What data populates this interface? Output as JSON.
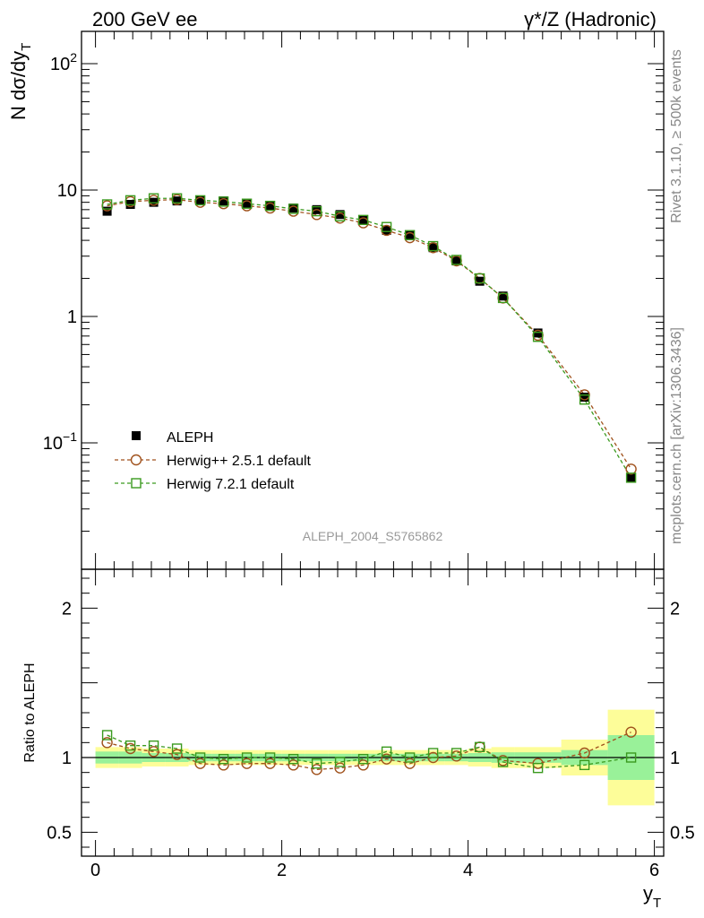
{
  "header": {
    "left_title": "200 GeV ee",
    "right_title": "γ*/Z (Hadronic)",
    "side_label_top": "Rivet 3.1.10, ≥ 500k events",
    "side_label_bottom": "mcplots.cern.ch [arXiv:1306.3436]",
    "watermark": "ALEPH_2004_S5765862"
  },
  "legend": {
    "items": [
      "ALEPH",
      "Herwig++ 2.5.1 default",
      "Herwig 7.2.1 default"
    ]
  },
  "colors": {
    "data": "#000000",
    "herwigpp": "#a0521d",
    "herwig7": "#3a9a1e",
    "band_inner": "#99f199",
    "band_outer": "#fdfd99"
  },
  "chart_data": [
    {
      "type": "scatter",
      "panel": "main",
      "yscale": "log",
      "ylabel": "N dσ/dy_T",
      "ylim": [
        0.01,
        180
      ],
      "xlim": [
        -0.15,
        6.1
      ],
      "yticks": [
        {
          "v": 0.1,
          "label": "10^−1"
        },
        {
          "v": 1,
          "label": "1"
        },
        {
          "v": 10,
          "label": "10"
        },
        {
          "v": 100,
          "label": "10^2"
        }
      ],
      "x": [
        0.125,
        0.375,
        0.625,
        0.875,
        1.125,
        1.375,
        1.625,
        1.875,
        2.125,
        2.375,
        2.625,
        2.875,
        3.125,
        3.375,
        3.625,
        3.875,
        4.125,
        4.375,
        4.75,
        5.25,
        5.75
      ],
      "series": [
        {
          "name": "ALEPH",
          "marker": "square-filled",
          "values": [
            6.8,
            7.7,
            8.0,
            8.2,
            8.3,
            8.2,
            7.8,
            7.5,
            7.2,
            7.0,
            6.4,
            5.8,
            4.8,
            4.4,
            3.5,
            2.75,
            1.9,
            1.45,
            0.74,
            0.23,
            0.053
          ]
        },
        {
          "name": "Herwig++ 2.5.1 default",
          "marker": "circle-open",
          "values": [
            7.5,
            8.1,
            8.3,
            8.4,
            8.0,
            7.8,
            7.5,
            7.2,
            6.8,
            6.4,
            6.0,
            5.5,
            4.8,
            4.2,
            3.5,
            2.75,
            2.0,
            1.4,
            0.71,
            0.24,
            0.062
          ]
        },
        {
          "name": "Herwig 7.2.1 default",
          "marker": "square-open",
          "values": [
            7.7,
            8.3,
            8.6,
            8.6,
            8.3,
            8.1,
            7.8,
            7.5,
            7.1,
            6.8,
            6.2,
            5.8,
            5.1,
            4.4,
            3.6,
            2.8,
            2.0,
            1.4,
            0.69,
            0.22,
            0.053
          ]
        }
      ]
    },
    {
      "type": "scatter",
      "panel": "ratio",
      "ylabel": "Ratio to ALEPH",
      "xlabel": "y_T",
      "ylim": [
        0.34,
        2.26
      ],
      "xlim": [
        -0.15,
        6.1
      ],
      "yticks": [
        {
          "v": 0.5,
          "label": "0.5"
        },
        {
          "v": 1,
          "label": "1"
        },
        {
          "v": 2,
          "label": "2"
        }
      ],
      "xticks": [
        {
          "v": 0,
          "label": "0"
        },
        {
          "v": 2,
          "label": "2"
        },
        {
          "v": 4,
          "label": "4"
        },
        {
          "v": 6,
          "label": "6"
        }
      ],
      "x": [
        0.125,
        0.375,
        0.625,
        0.875,
        1.125,
        1.375,
        1.625,
        1.875,
        2.125,
        2.375,
        2.625,
        2.875,
        3.125,
        3.375,
        3.625,
        3.875,
        4.125,
        4.375,
        4.75,
        5.25,
        5.75
      ],
      "bins": [
        [
          0,
          0.25
        ],
        [
          0.25,
          0.5
        ],
        [
          0.5,
          0.75
        ],
        [
          0.75,
          1.0
        ],
        [
          1.0,
          1.25
        ],
        [
          1.25,
          1.5
        ],
        [
          1.5,
          1.75
        ],
        [
          1.75,
          2.0
        ],
        [
          2.0,
          2.25
        ],
        [
          2.25,
          2.5
        ],
        [
          2.5,
          2.75
        ],
        [
          2.75,
          3.0
        ],
        [
          3.0,
          3.25
        ],
        [
          3.25,
          3.5
        ],
        [
          3.5,
          3.75
        ],
        [
          3.75,
          4.0
        ],
        [
          4.0,
          4.25
        ],
        [
          4.25,
          4.5
        ],
        [
          4.5,
          5.0
        ],
        [
          5.0,
          5.5
        ],
        [
          5.5,
          6.0
        ]
      ],
      "band_outer": [
        0.07,
        0.07,
        0.06,
        0.06,
        0.05,
        0.05,
        0.05,
        0.05,
        0.05,
        0.05,
        0.05,
        0.05,
        0.05,
        0.05,
        0.05,
        0.05,
        0.06,
        0.07,
        0.07,
        0.12,
        0.32
      ],
      "band_inner": [
        0.04,
        0.04,
        0.03,
        0.03,
        0.025,
        0.025,
        0.025,
        0.025,
        0.025,
        0.025,
        0.025,
        0.025,
        0.025,
        0.025,
        0.025,
        0.025,
        0.03,
        0.035,
        0.035,
        0.05,
        0.15
      ],
      "series": [
        {
          "name": "Herwig++ 2.5.1 default",
          "marker": "circle-open",
          "values": [
            1.1,
            1.06,
            1.04,
            1.02,
            0.96,
            0.95,
            0.96,
            0.96,
            0.95,
            0.92,
            0.93,
            0.95,
            0.99,
            0.96,
            1.0,
            1.01,
            1.07,
            0.98,
            0.96,
            1.03,
            1.17
          ]
        },
        {
          "name": "Herwig 7.2.1 default",
          "marker": "square-open",
          "values": [
            1.15,
            1.08,
            1.08,
            1.06,
            1.0,
            0.99,
            1.0,
            1.0,
            0.99,
            0.96,
            0.97,
            0.99,
            1.04,
            1.0,
            1.03,
            1.03,
            1.07,
            0.97,
            0.93,
            0.95,
            1.0
          ]
        }
      ]
    }
  ]
}
